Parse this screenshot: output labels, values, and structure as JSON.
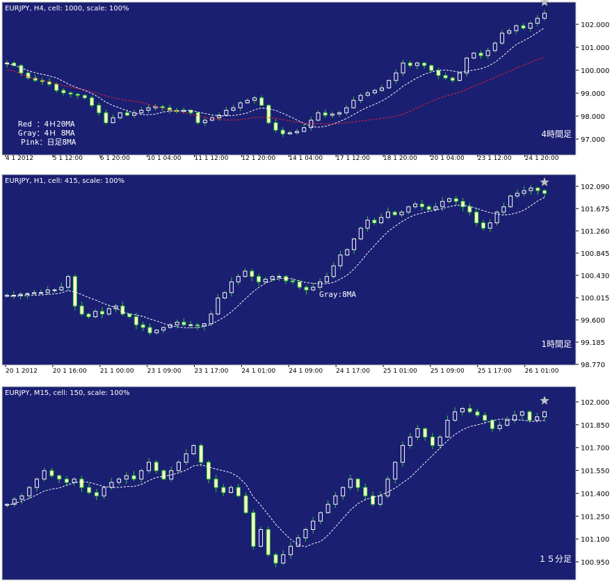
{
  "colors": {
    "background": "#1b1f72",
    "axis_strip": "#ffffff",
    "frame": "#c8c8c8",
    "candle_wick": "#33cc33",
    "candle_bull": "#ffffff",
    "candle_bear": "#ffffc8",
    "ma_gray": "#ffffff",
    "ma_red": "#e8202a",
    "star": "#c0c0c0",
    "text": "#ffffff",
    "axis_text": "#000000"
  },
  "chart_data": [
    {
      "type": "candlestick",
      "title": "EURJPY, H4, cell: 1000, scale: 100%",
      "corner_label": "4時間足",
      "legend_lines": [
        "Red ：4Ｈ20MA",
        "Gray：4Ｈ 8MA",
        "Pink：日足8MA"
      ],
      "x_tick_labels": [
        "4 1 2012",
        "5 1 12:00",
        "6 1 20:00",
        "10 1 04:00",
        "11 1 12:00",
        "12 1 20:00",
        "14 1 04:00",
        "17 1 12:00",
        "18 1 20:00",
        "20 1 04:00",
        "23 1 12:00",
        "24 1 20:00"
      ],
      "y_tick_labels": [
        "102.000",
        "101.000",
        "100.000",
        "99.000",
        "98.000",
        "97.000"
      ],
      "ylim": [
        96.3,
        102.45
      ],
      "close": [
        100.0,
        99.9,
        99.6,
        99.4,
        99.3,
        99.25,
        99.15,
        98.9,
        98.8,
        98.75,
        98.7,
        98.6,
        98.3,
        98.0,
        97.6,
        97.8,
        98.0,
        97.9,
        98.0,
        98.1,
        98.2,
        98.25,
        98.2,
        98.1,
        98.05,
        98.1,
        98.0,
        97.6,
        97.7,
        97.8,
        97.9,
        98.1,
        98.2,
        98.4,
        98.5,
        98.6,
        98.3,
        97.6,
        97.3,
        97.15,
        97.2,
        97.25,
        97.4,
        97.7,
        98.0,
        97.9,
        97.95,
        98.0,
        98.2,
        98.5,
        98.7,
        98.8,
        98.9,
        99.0,
        99.3,
        99.6,
        100.0,
        99.9,
        100.0,
        99.9,
        99.7,
        99.5,
        99.4,
        99.3,
        99.6,
        100.2,
        100.4,
        100.3,
        100.5,
        100.8,
        101.2,
        101.3,
        101.5,
        101.4,
        101.6,
        101.8,
        102.0
      ]
    },
    {
      "type": "candlestick",
      "title": "EURJPY, H1, cell: 415, scale: 100%",
      "corner_label": "1時間足",
      "ma_label": "Gray:8MA",
      "x_tick_labels": [
        "20 1 2012",
        "20 1 16:00",
        "21 1 00:00",
        "23 1 09:00",
        "23 1 17:00",
        "24 1 01:00",
        "24 1 09:00",
        "24 1 17:00",
        "25 1 01:00",
        "25 1 09:00",
        "25 1 17:00",
        "26 1 01:00"
      ],
      "y_tick_labels": [
        "102.090",
        "101.675",
        "101.260",
        "100.845",
        "100.430",
        "100.015",
        "99.600",
        "99.185",
        "98.770"
      ],
      "ylim": [
        98.65,
        102.2
      ],
      "close": [
        99.95,
        99.95,
        99.97,
        99.98,
        100.0,
        100.0,
        100.05,
        100.05,
        100.1,
        100.3,
        99.75,
        99.6,
        99.55,
        99.65,
        99.6,
        99.7,
        99.75,
        99.6,
        99.55,
        99.4,
        99.35,
        99.25,
        99.3,
        99.35,
        99.4,
        99.45,
        99.4,
        99.4,
        99.38,
        99.42,
        99.6,
        99.9,
        100.0,
        100.2,
        100.3,
        100.4,
        100.3,
        100.2,
        100.25,
        100.3,
        100.3,
        100.22,
        100.2,
        100.1,
        100.05,
        100.1,
        100.2,
        100.3,
        100.5,
        100.7,
        100.8,
        101.0,
        101.2,
        101.35,
        101.3,
        101.4,
        101.5,
        101.45,
        101.5,
        101.6,
        101.65,
        101.6,
        101.55,
        101.6,
        101.7,
        101.75,
        101.7,
        101.6,
        101.5,
        101.3,
        101.2,
        101.3,
        101.5,
        101.6,
        101.8,
        101.85,
        101.9,
        101.95,
        101.9,
        101.85
      ]
    },
    {
      "type": "candlestick",
      "title": "EURJPY, M15, cell: 150, scale: 100%",
      "corner_label": "１５分足",
      "x_tick_labels": [],
      "y_tick_labels": [
        "102.000",
        "101.850",
        "101.700",
        "101.550",
        "101.400",
        "101.250",
        "101.100",
        "100.950"
      ],
      "ylim": [
        100.9,
        102.05
      ],
      "close": [
        101.35,
        101.38,
        101.4,
        101.45,
        101.5,
        101.55,
        101.52,
        101.5,
        101.48,
        101.5,
        101.45,
        101.42,
        101.4,
        101.45,
        101.48,
        101.5,
        101.52,
        101.5,
        101.55,
        101.6,
        101.55,
        101.5,
        101.55,
        101.6,
        101.65,
        101.7,
        101.6,
        101.5,
        101.45,
        101.42,
        101.45,
        101.4,
        101.3,
        101.1,
        101.2,
        101.05,
        101.0,
        101.05,
        101.1,
        101.15,
        101.2,
        101.25,
        101.3,
        101.35,
        101.4,
        101.45,
        101.5,
        101.45,
        101.4,
        101.35,
        101.4,
        101.5,
        101.6,
        101.7,
        101.75,
        101.8,
        101.75,
        101.7,
        101.75,
        101.85,
        101.9,
        101.92,
        101.9,
        101.88,
        101.85,
        101.8,
        101.82,
        101.85,
        101.88,
        101.9,
        101.85,
        101.87,
        101.9
      ]
    }
  ]
}
